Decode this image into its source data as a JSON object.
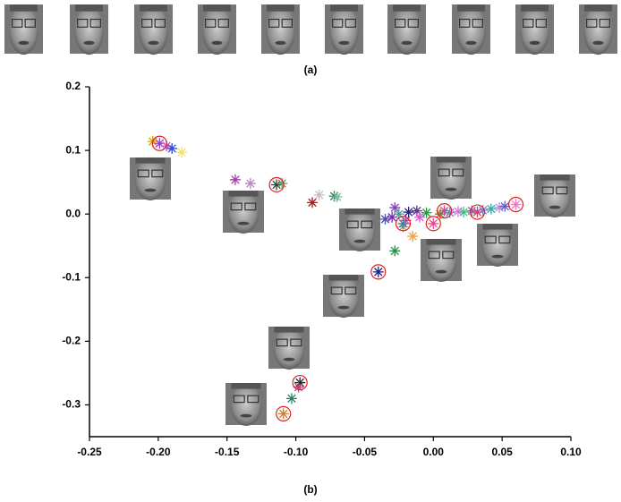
{
  "chart_data": {
    "type": "scatter",
    "caption_top": "(a)",
    "caption_bottom": "(b)",
    "xlim": [
      -0.25,
      0.1
    ],
    "ylim": [
      -0.35,
      0.2
    ],
    "xticks": [
      -0.25,
      {
        "value": -0.2,
        "label": "-0.20"
      },
      -0.15,
      {
        "value": -0.1,
        "label": "-0.10"
      },
      -0.05,
      {
        "value": 0,
        "label": "0.00"
      },
      0.05,
      {
        "value": 0.1,
        "label": "0.10"
      }
    ],
    "yticks": [
      -0.3,
      -0.2,
      -0.1,
      {
        "value": 0,
        "label": "0.0"
      },
      0.1,
      0.2
    ],
    "series": [
      {
        "marker": "asterisk",
        "x": [
          -0.204,
          -0.199,
          -0.194,
          -0.19,
          -0.183,
          -0.144,
          -0.133,
          -0.114,
          -0.11,
          -0.088,
          -0.083,
          -0.072,
          -0.07,
          -0.035,
          -0.03,
          -0.028,
          -0.025,
          -0.022,
          -0.02,
          -0.018,
          -0.015,
          -0.012,
          -0.01,
          -0.005,
          0,
          0.005,
          0.008,
          0.012,
          0.018,
          0.022,
          0.028,
          0.032,
          0.036,
          0.042,
          0.048,
          0.052,
          0.06,
          -0.028,
          -0.022,
          -0.04,
          -0.097,
          -0.098,
          -0.103,
          -0.109
        ],
        "y": [
          0.114,
          0.111,
          0.107,
          0.103,
          0.097,
          0.054,
          0.048,
          0.046,
          0.048,
          0.018,
          0.03,
          0.028,
          0.027,
          -0.008,
          -0.005,
          0.01,
          0,
          -0.02,
          -0.01,
          0.003,
          -0.035,
          0.005,
          -0.005,
          0.002,
          -0.015,
          0,
          0.005,
          0.002,
          0.004,
          0.003,
          0.005,
          0.003,
          0.006,
          0.008,
          0.01,
          0.012,
          0.015,
          -0.058,
          -0.015,
          -0.091,
          -0.265,
          -0.272,
          -0.29,
          -0.314
        ],
        "colors": [
          "#d4a000",
          "#9040c0",
          "#c060c0",
          "#3050d0",
          "#f0e070",
          "#a040a0",
          "#c080c0",
          "#304030",
          "#60a060",
          "#a02020",
          "#c0c0c0",
          "#208060",
          "#80c0a0",
          "#5050a0",
          "#7030a0",
          "#8040c0",
          "#40a0a0",
          "#c0a060",
          "#e040a0",
          "#202080",
          "#f0a040",
          "#603090",
          "#d060d0",
          "#20a040",
          "#f04090",
          "#808020",
          "#c05090",
          "#6090c0",
          "#e070e0",
          "#40c080",
          "#a060c0",
          "#d04060",
          "#8080e0",
          "#30b0b0",
          "#c090d0",
          "#6060c0",
          "#e080c0",
          "#209040",
          "#4080a0",
          "#202080",
          "#202020",
          "#c04080",
          "#208060",
          "#c08040"
        ]
      },
      {
        "marker": "circle",
        "color": "#e02020",
        "x": [
          -0.199,
          -0.114,
          0,
          0.008,
          0.032,
          0.06,
          -0.022,
          -0.04,
          -0.097,
          -0.109
        ],
        "y": [
          0.111,
          0.046,
          -0.015,
          0.005,
          0.003,
          0.015,
          -0.015,
          -0.091,
          -0.265,
          -0.314
        ]
      }
    ]
  }
}
